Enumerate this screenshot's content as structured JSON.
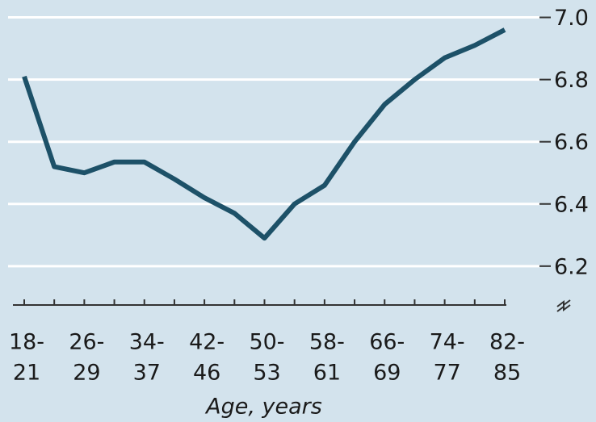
{
  "chart_data": {
    "type": "line",
    "xlabel": "Age, years",
    "categories": [
      [
        "18-",
        "21"
      ],
      null,
      [
        "26-",
        "29"
      ],
      null,
      [
        "34-",
        "37"
      ],
      null,
      [
        "42-",
        "46"
      ],
      null,
      [
        "50-",
        "53"
      ],
      null,
      [
        "58-",
        "61"
      ],
      null,
      [
        "66-",
        "69"
      ],
      null,
      [
        "74-",
        "77"
      ],
      null,
      [
        "82-",
        "85"
      ]
    ],
    "series": [
      {
        "color": "#1d5168",
        "values": [
          6.81,
          6.52,
          6.5,
          6.535,
          6.535,
          6.48,
          6.42,
          6.37,
          6.29,
          6.4,
          6.46,
          6.6,
          6.72,
          6.8,
          6.87,
          6.91,
          6.96
        ]
      }
    ],
    "ylim": [
      6.075,
      7.03
    ],
    "yticks": [
      {
        "value": 6.2,
        "label": "6.2"
      },
      {
        "value": 6.4,
        "label": "6.4"
      },
      {
        "value": 6.6,
        "label": "6.6"
      },
      {
        "value": 6.8,
        "label": "6.8"
      },
      {
        "value": 7.0,
        "label": "7.0"
      }
    ],
    "grid": true
  }
}
